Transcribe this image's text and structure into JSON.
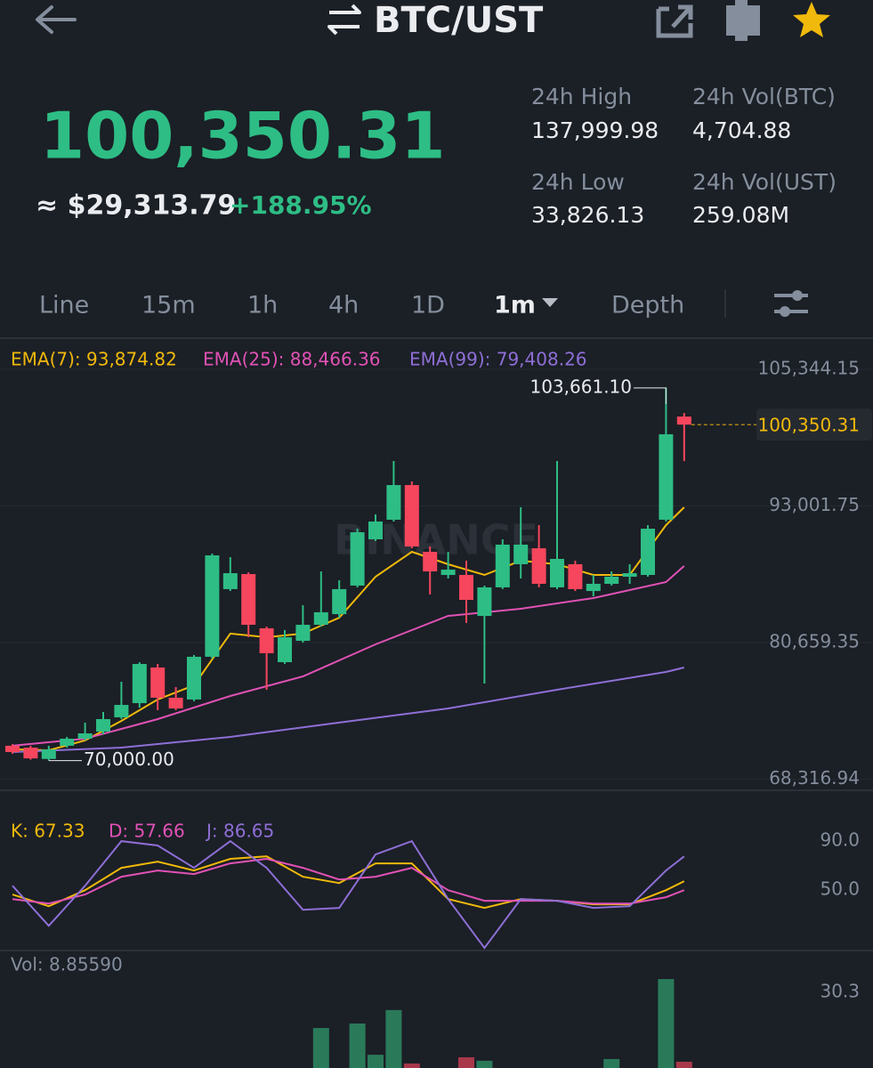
{
  "header": {
    "title": "BTC/UST"
  },
  "ticker": {
    "price": "100,350.31",
    "approx": "≈ $29,313.79",
    "change": "+188.95%",
    "stats": [
      {
        "label": "24h High",
        "value": "137,999.98"
      },
      {
        "label": "24h Vol(BTC)",
        "value": "4,704.88"
      },
      {
        "label": "24h Low",
        "value": "33,826.13"
      },
      {
        "label": "24h Vol(UST)",
        "value": "259.08M"
      }
    ]
  },
  "tabs": [
    "Line",
    "15m",
    "1h",
    "4h",
    "1D",
    "1m",
    "Depth"
  ],
  "chart": {
    "type": "candlestick",
    "watermark": "BINANCE",
    "up_color": "#2ebd85",
    "down_color": "#f6465d",
    "open": [
      71340,
      71170,
      70150,
      71340,
      71980,
      72620,
      73910,
      75190,
      78410,
      75680,
      75520,
      79380,
      85490,
      86850,
      81950,
      78890,
      80820,
      82270,
      83230,
      85810,
      89990,
      91760,
      94890,
      88860,
      86770,
      86770,
      83070,
      85650,
      87740,
      89180,
      85650,
      87740,
      85320,
      85970,
      86610,
      86770,
      91760,
      101080
    ],
    "high": [
      71500,
      71340,
      71340,
      72140,
      73430,
      74390,
      77120,
      78890,
      78730,
      76640,
      79540,
      88700,
      88380,
      87010,
      82110,
      81790,
      84040,
      87090,
      86290,
      90950,
      92240,
      97060,
      95210,
      89340,
      88860,
      88060,
      85810,
      89990,
      92880,
      91270,
      97060,
      88060,
      86770,
      87090,
      87740,
      91270,
      103661.1,
      101400
    ],
    "low": [
      70610,
      70080,
      70000,
      71170,
      71820,
      72380,
      73750,
      74790,
      74550,
      74550,
      75360,
      79210,
      85320,
      81140,
      76400,
      78730,
      80660,
      82110,
      82910,
      85650,
      89830,
      91600,
      89180,
      85000,
      86450,
      82430,
      76960,
      85490,
      86450,
      85650,
      85490,
      85320,
      84840,
      85810,
      85970,
      86610,
      91600,
      97060
    ],
    "close": [
      70770,
      70200,
      71010,
      71980,
      72460,
      73750,
      75030,
      78730,
      75680,
      74710,
      79380,
      88540,
      86930,
      82270,
      79700,
      81140,
      82270,
      83400,
      85490,
      90630,
      91600,
      94890,
      89340,
      87090,
      87250,
      84520,
      85650,
      89510,
      89510,
      85970,
      88220,
      85490,
      85970,
      86610,
      86930,
      90950,
      99480,
      100350.31
    ],
    "high_label": "103,661.10",
    "low_label": "70,000.00",
    "last_label": "100,350.31",
    "last_color": "#f0b90b",
    "ylim": [
      67556,
      106952
    ],
    "yticks": [
      {
        "value": 105344.15,
        "label": "105,344.15"
      },
      {
        "value": 93001.75,
        "label": "93,001.75"
      },
      {
        "value": 80659.35,
        "label": "80,659.35"
      },
      {
        "value": 68316.94,
        "label": "68,316.94"
      }
    ],
    "grid": true,
    "series": [
      {
        "name": "EMA(7): 93,874.82",
        "color": "#f0b90b",
        "x": [
          0,
          2,
          4,
          6,
          8,
          10,
          12,
          14,
          16,
          18,
          20,
          22,
          24,
          26,
          28,
          30,
          32,
          34,
          36,
          37
        ],
        "values": [
          71010,
          70930,
          71820,
          73590,
          75520,
          76800,
          81470,
          81140,
          81470,
          82910,
          86610,
          88860,
          87740,
          86770,
          88060,
          87740,
          86770,
          86770,
          91270,
          92880
        ]
      },
      {
        "name": "EMA(25): 88,466.36",
        "color": "#e052b5",
        "x": [
          0,
          4,
          8,
          12,
          16,
          20,
          24,
          28,
          32,
          36,
          37
        ],
        "values": [
          71340,
          71980,
          73750,
          75840,
          77610,
          80500,
          83070,
          83720,
          84680,
          86130,
          87580
        ]
      },
      {
        "name": "EMA(99): 79,408.26",
        "color": "#8e6fd6",
        "x": [
          0,
          6,
          12,
          18,
          24,
          30,
          36,
          37
        ],
        "values": [
          70770,
          71170,
          72140,
          73430,
          74710,
          76400,
          78010,
          78410
        ]
      }
    ]
  },
  "kdj": {
    "type": "line",
    "ylim": [
      0,
      130
    ],
    "yticks": [
      {
        "value": 90,
        "label": "90.0"
      },
      {
        "value": 50,
        "label": "50.0"
      }
    ],
    "series": [
      {
        "name": "K: 67.33",
        "color": "#f0b90b",
        "x": [
          0,
          2,
          4,
          6,
          8,
          10,
          12,
          14,
          16,
          18,
          20,
          22,
          24,
          26,
          28,
          30,
          32,
          34,
          36,
          37
        ],
        "values": [
          46.4,
          36.9,
          50.0,
          68.2,
          73.3,
          66.0,
          75.5,
          77.6,
          60.9,
          55.8,
          71.8,
          71.8,
          42.7,
          35.5,
          42.7,
          41.3,
          38.4,
          38.4,
          50.0,
          57.3
        ]
      },
      {
        "name": "D: 57.66",
        "color": "#e052b5",
        "x": [
          0,
          2,
          4,
          6,
          8,
          10,
          12,
          14,
          16,
          18,
          20,
          22,
          24,
          26,
          28,
          30,
          32,
          34,
          36,
          37
        ],
        "values": [
          42.7,
          39.1,
          46.4,
          60.9,
          66.0,
          63.1,
          71.8,
          75.5,
          68.2,
          58.7,
          60.9,
          68.2,
          50.0,
          41.3,
          41.3,
          41.3,
          39.1,
          39.1,
          44.2,
          50.0
        ]
      },
      {
        "name": "J: 86.65",
        "color": "#8e6fd6",
        "x": [
          0,
          2,
          4,
          6,
          8,
          10,
          12,
          14,
          16,
          18,
          20,
          22,
          24,
          26,
          28,
          30,
          32,
          34,
          36,
          37
        ],
        "values": [
          53.6,
          20.9,
          53.6,
          90.0,
          86.4,
          68.2,
          90.0,
          68.2,
          34.0,
          35.5,
          79.1,
          90.0,
          42.7,
          2.8,
          42.7,
          41.3,
          35.5,
          36.9,
          66.0,
          77.6
        ]
      }
    ]
  },
  "volume": {
    "type": "bar",
    "label": "Vol: 8.85590",
    "x": [
      17,
      19,
      20,
      21,
      22,
      25,
      26,
      33,
      36,
      37
    ],
    "values": [
      16.0,
      17.8,
      5.3,
      23.2,
      1.8,
      4.3,
      2.9,
      3.6,
      35.6,
      2.5
    ],
    "colors": [
      "#2a7a5a",
      "#2a7a5a",
      "#2a7a5a",
      "#2a7a5a",
      "#a8384a",
      "#a8384a",
      "#2a7a5a",
      "#2a7a5a",
      "#2a7a5a",
      "#a8384a"
    ],
    "ylim": [
      0,
      37.4
    ],
    "yticks": [
      30.3
    ]
  }
}
